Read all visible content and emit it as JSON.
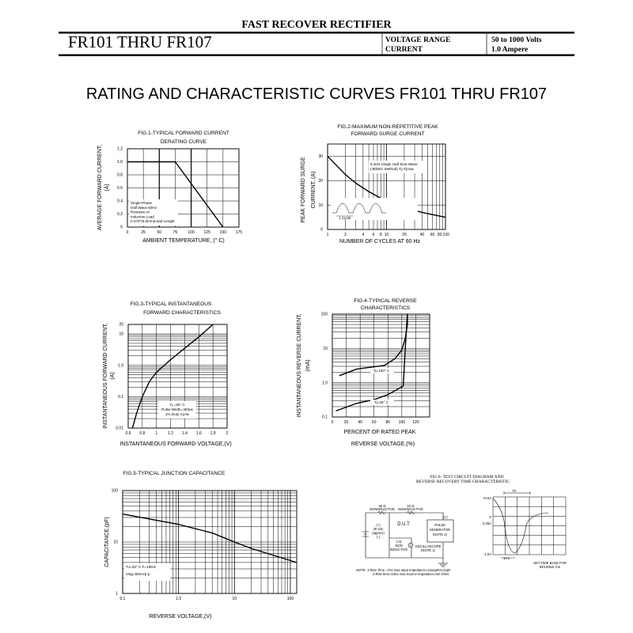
{
  "header": {
    "category": "FAST RECOVER RECTIFIER",
    "part_range": "FR101 THRU FR107",
    "voltage_label": "VOLTAGE RANGE",
    "voltage_value": "50 to 1000 Volts",
    "current_label": "CURRENT",
    "current_value": "1.0 Ampere"
  },
  "page_title": "RATING AND CHARACTERISTIC CURVES FR101 THRU FR107",
  "chart_data": [
    {
      "type": "line",
      "title": [
        "FIG.1-TYPICAL FORWARD CURRENT",
        "DERATING CURVE"
      ],
      "xlabel": "AMBIENT TEMPERATURE, (° C)",
      "ylabel": [
        "AVERAGE FORWARD CURRENT,",
        "(A)"
      ],
      "xlim": [
        0,
        175
      ],
      "ylim": [
        0,
        1.2
      ],
      "xticks": [
        0,
        25,
        50,
        75,
        100,
        125,
        150,
        175
      ],
      "yticks": [
        0,
        0.2,
        0.4,
        0.6,
        0.8,
        1.0,
        1.2
      ],
      "ytick_labels": [
        "0",
        "0.2",
        "0.4",
        "0.6",
        "0.8",
        "1.0",
        "1.2"
      ],
      "xscale": "linear",
      "yscale": "linear",
      "grid": true,
      "series": [
        {
          "x": [
            0,
            75,
            150
          ],
          "y": [
            1.0,
            1.0,
            0
          ]
        }
      ],
      "annotation": [
        "Single Phase",
        "Half Wave 60Hz",
        "Resistive or",
        "Inductive Load",
        "0.375\"(9.5mm)Lead Length"
      ]
    },
    {
      "type": "line",
      "title": [
        "FIG.2-MAXIMUM NON-REPETITIVE PEAK",
        "FORWARD SURGE CURRENT"
      ],
      "xlabel": "NUMBER OF CYCLES AT 60 Hz",
      "ylabel": [
        "PEAK FORWARD SURGE",
        "CURRENT, (A)"
      ],
      "xlim": [
        1,
        100
      ],
      "ylim": [
        0,
        35
      ],
      "xticks": [
        1,
        2,
        4,
        6,
        8,
        10,
        20,
        40,
        60,
        80,
        100
      ],
      "yticks": [
        0,
        10,
        20,
        30
      ],
      "ytick_labels": [
        "0",
        "10",
        "20",
        "30"
      ],
      "xscale": "log",
      "yscale": "linear",
      "grid": true,
      "series": [
        {
          "x": [
            1,
            2,
            3,
            5,
            10,
            20,
            40,
            100
          ],
          "y": [
            30,
            22.5,
            19,
            15.5,
            11.5,
            9,
            7,
            5
          ]
        }
      ],
      "annotation": [
        "8.3ms Single Half Sine-Wave",
        "(JEDEC Method)  Tj=Tjmax"
      ],
      "inset_label": "1 Cycle"
    },
    {
      "type": "line",
      "title": [
        "FIG.3-TYPICAL INSTANTANEOUS",
        "FORWARD CHARACTERISTICS"
      ],
      "xlabel": "INSTANTANEOUS FORWARD VOLTAGE,(V)",
      "ylabel": [
        "INSTANTANEOUS FORWARD CURRENT,",
        "(A)"
      ],
      "xlim": [
        0.6,
        2.0
      ],
      "ylim": [
        0.01,
        20
      ],
      "xticks": [
        0.6,
        0.8,
        1.0,
        1.2,
        1.4,
        1.6,
        1.8,
        2.0
      ],
      "yticks": [
        0.01,
        0.1,
        1.0,
        10,
        20
      ],
      "ytick_labels": [
        "0.01",
        "0.1",
        "1.0",
        "10",
        "20"
      ],
      "xscale": "linear",
      "yscale": "log",
      "grid": true,
      "series": [
        {
          "x": [
            0.66,
            0.72,
            0.8,
            0.9,
            1.0,
            1.2,
            1.4,
            1.6,
            1.8
          ],
          "y": [
            0.01,
            0.03,
            0.1,
            0.3,
            0.6,
            1.5,
            3.5,
            8,
            20
          ]
        }
      ],
      "annotation": [
        "Tj =25° C",
        "Pulse Width=300us",
        "1% Duty Cycle"
      ]
    },
    {
      "type": "line",
      "title": [
        "FIG.4-TYPICAL REVERSE",
        "CHARACTERISTICS"
      ],
      "xlabel": [
        "PERCENT OF RATED PEAK",
        "REVERSE VOLTAGE,(%)"
      ],
      "ylabel": [
        "INSTANTANEOUS REVERSE CURRENT,",
        "(mA)"
      ],
      "xlim": [
        0,
        140
      ],
      "ylim": [
        0.1,
        100
      ],
      "xticks": [
        0,
        20,
        40,
        60,
        80,
        100,
        120
      ],
      "yticks": [
        0.1,
        1.0,
        10,
        100
      ],
      "ytick_labels": [
        "0.1",
        "1.0",
        "10",
        "100"
      ],
      "xscale": "linear",
      "yscale": "log",
      "grid": true,
      "series": [
        {
          "name": "Tj=100° C",
          "x": [
            10,
            35,
            75,
            90,
            100,
            105,
            108,
            108
          ],
          "y": [
            1.6,
            2.5,
            3.2,
            5,
            9,
            20,
            50,
            100
          ]
        },
        {
          "name": "Tj=25° C",
          "x": [
            5,
            35,
            60,
            80,
            102,
            105,
            107,
            108
          ],
          "y": [
            0.15,
            0.25,
            0.32,
            0.45,
            0.8,
            10,
            50,
            100
          ]
        }
      ]
    },
    {
      "type": "line",
      "title": [
        "FIG.5-TYPICAL JUNCTION CAPACITANCE"
      ],
      "xlabel": "REVERSE VOLTAGE,(V)",
      "ylabel": [
        "CAPACITANCE,(pF)"
      ],
      "xlim": [
        0.1,
        130
      ],
      "ylim": [
        1,
        100
      ],
      "xticks": [
        0.1,
        1.0,
        10,
        100
      ],
      "xtick_labels": [
        "0.1",
        "1.0",
        "10",
        "100"
      ],
      "yticks": [
        1,
        10,
        100
      ],
      "ytick_labels": [
        "1",
        "10",
        "100"
      ],
      "xscale": "log",
      "yscale": "log",
      "grid": true,
      "series": [
        {
          "x": [
            0.1,
            1,
            4,
            10,
            20,
            130
          ],
          "y": [
            35,
            22,
            15,
            10,
            7.5,
            4
          ]
        }
      ],
      "annotation": [
        "TJ=25° C F=1MHz",
        "Vsig=50mVp-p"
      ]
    }
  ],
  "fig6": {
    "title": [
      "FIG.6- TEST CIRCUIT DIAGRAM AND",
      "REVERSE RECOVERY TIME CHARACTERISTIC"
    ],
    "r50": [
      "50 Ω",
      "NONINDUCTIVE"
    ],
    "r10": [
      "10 Ω",
      "NONINDUCTIVE"
    ],
    "source": [
      "(+)",
      "25 Vdc",
      "(approx)",
      "(-)"
    ],
    "dut": "D.U.T",
    "pulse_gen": [
      "PULSE",
      "GENERATOR",
      "(NOTE 2)"
    ],
    "r1": [
      "1 Ω",
      "NON",
      "INDUCTIVE"
    ],
    "scope": [
      "OSCILLOSCOPE",
      "(NOTE 1)"
    ],
    "pg_plus": "(+)",
    "notes": [
      "NOTE: 1.Rise Time =7ns max.Input Impedance=1megohm.22pF",
      "2.Rise time=10ns max.Source Impedance=50 ohms"
    ],
    "wave": {
      "trr": "Trr",
      "y_labels": [
        "+0.5A",
        "0",
        "0.25A",
        "-1.0A"
      ],
      "scale": "1cm",
      "caption": [
        "SET TIME BASE FOR",
        "50/100NS /cm"
      ]
    }
  }
}
